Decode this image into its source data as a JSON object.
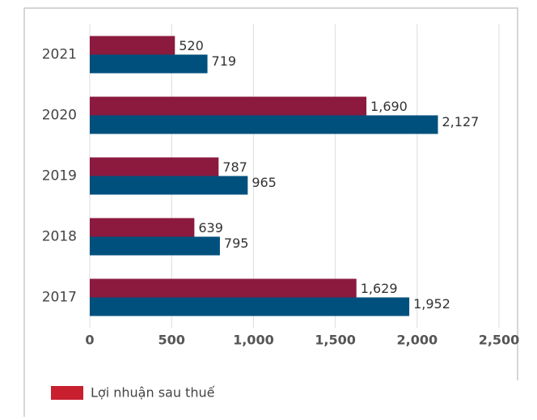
{
  "chart_data": {
    "type": "hbar",
    "categories": [
      "2021",
      "2020",
      "2019",
      "2018",
      "2017"
    ],
    "series": [
      {
        "name": "Lợi nhuận sau thuế",
        "color": "#8b1a3e",
        "legend_color": "#c8202f",
        "values": [
          520,
          1690,
          787,
          639,
          1629
        ],
        "value_labels": [
          "520",
          "1,690",
          "787",
          "639",
          "1,629"
        ]
      },
      {
        "color": "#00507e",
        "values": [
          719,
          2127,
          965,
          795,
          1952
        ],
        "value_labels": [
          "719",
          "2,127",
          "965",
          "795",
          "1,952"
        ]
      }
    ],
    "xlim": [
      0,
      2500
    ],
    "xticks": [
      0,
      500,
      {
        "value": 1000,
        "label": "1,000"
      },
      {
        "value": 1500,
        "label": "1,500"
      },
      {
        "value": 2000,
        "label": "2,000"
      },
      {
        "value": 2500,
        "label": "2,500"
      }
    ],
    "grid": true
  }
}
